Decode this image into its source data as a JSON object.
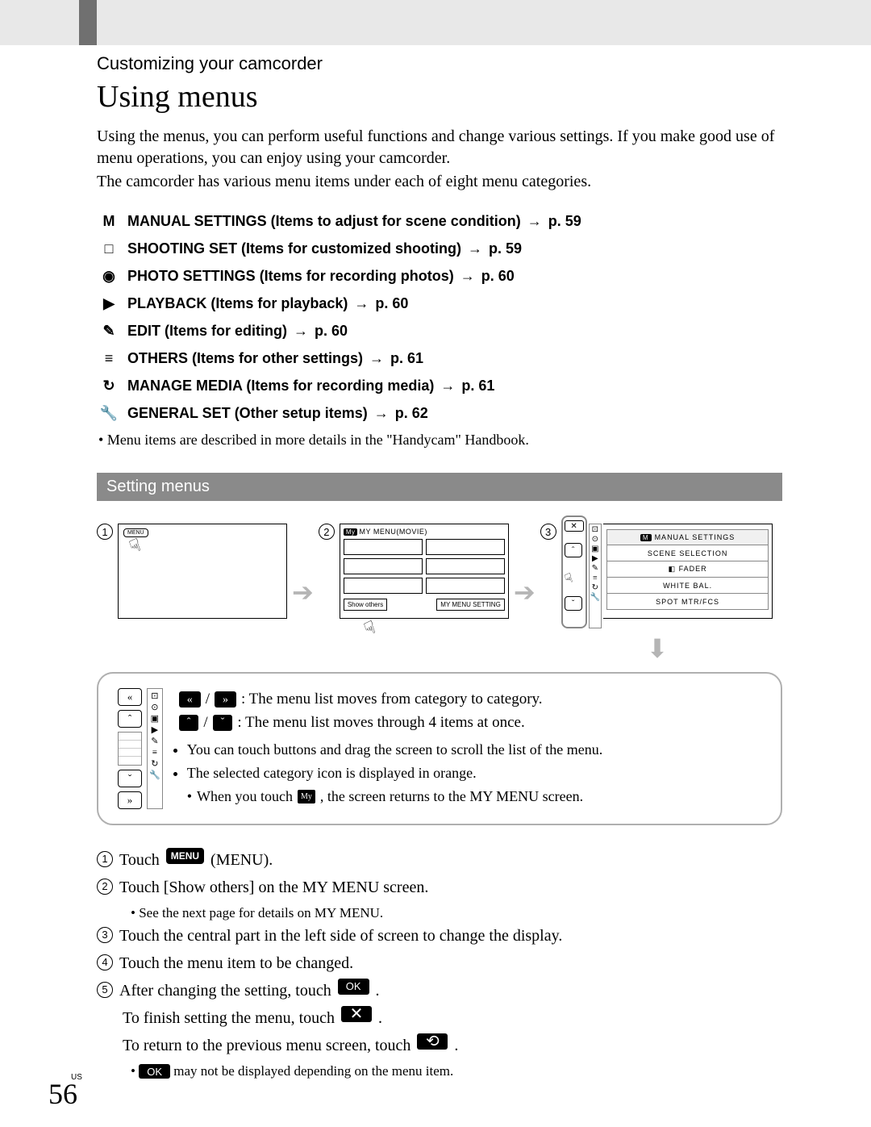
{
  "colors": {
    "top_bar": "#e8e8e8",
    "top_tab": "#707070",
    "subheader_bg": "#8a8a8a",
    "rounded_border": "#b0b0b0",
    "arrow_gray": "#b5b5b5",
    "text": "#000000",
    "bg": "#ffffff"
  },
  "header": {
    "section": "Customizing your camcorder",
    "title": "Using menus"
  },
  "intro": {
    "p1": "Using the menus, you can perform useful functions and change various settings. If you make good use of menu operations, you can enjoy using your camcorder.",
    "p2": "The camcorder has various menu items under each of eight menu categories."
  },
  "categories": [
    {
      "icon": "M",
      "name": "MANUAL SETTINGS",
      "desc": "(Items to adjust for scene condition)",
      "page": "p. 59"
    },
    {
      "icon": "□",
      "name": "SHOOTING SET",
      "desc": "(Items for customized shooting)",
      "page": "p. 59"
    },
    {
      "icon": "◉",
      "name": "PHOTO SETTINGS",
      "desc": "(Items for recording photos)",
      "page": "p. 60"
    },
    {
      "icon": "▶",
      "name": "PLAYBACK",
      "desc": "(Items for playback)",
      "page": "p. 60"
    },
    {
      "icon": "✎",
      "name": "EDIT",
      "desc": "(Items for editing)",
      "page": "p. 60"
    },
    {
      "icon": "≡",
      "name": "OTHERS",
      "desc": "(Items for other settings)",
      "page": "p. 61"
    },
    {
      "icon": "↻",
      "name": "MANAGE MEDIA",
      "desc": "(Items for recording media)",
      "page": "p. 61"
    },
    {
      "icon": "🔧",
      "name": "GENERAL SET",
      "desc": "(Other setup items)",
      "page": "p. 62"
    }
  ],
  "note1": "Menu items are described in more details in the \"Handycam\" Handbook.",
  "subheader": "Setting menus",
  "flow": {
    "panel1": {
      "menu_chip": "MENU"
    },
    "panel2": {
      "badge": "My",
      "title": "MY MENU(MOVIE)",
      "btn_left": "Show others",
      "btn_right": "MY MENU SETTING"
    },
    "panel3": {
      "header_badge": "M",
      "header_title": "MANUAL SETTINGS",
      "rows": [
        "SCENE SELECTION",
        "FADER",
        "WHITE BAL.",
        "SPOT MTR/FCS"
      ]
    }
  },
  "box_tips": {
    "line1a": ": The menu list moves from category to category.",
    "line2a": ": The menu list moves through 4 items at once.",
    "bullets": [
      "You can touch buttons and drag the screen to scroll the list of the menu.",
      "The selected category icon is displayed in orange."
    ],
    "bullet3_pre": "When you touch",
    "bullet3_badge": "My",
    "bullet3_post": ", the screen returns to the MY MENU screen."
  },
  "steps": {
    "s1_pre": "Touch",
    "s1_badge": "MENU",
    "s1_post": "(MENU).",
    "s2": "Touch [Show others] on the MY MENU screen.",
    "s2_note": "See the next page for details on MY MENU.",
    "s3": "Touch the central part in the left side of screen to change the display.",
    "s4": "Touch the menu item to be changed.",
    "s5_pre": "After changing the setting, touch",
    "s5_ok": "OK",
    "s5_line2_pre": "To finish setting the menu, touch",
    "s5_line3_pre": "To return to the previous menu screen, touch",
    "s5_note_ok": "OK",
    "s5_note_post": "may not be displayed depending on the menu item."
  },
  "footer": {
    "region": "US",
    "page": "56"
  }
}
